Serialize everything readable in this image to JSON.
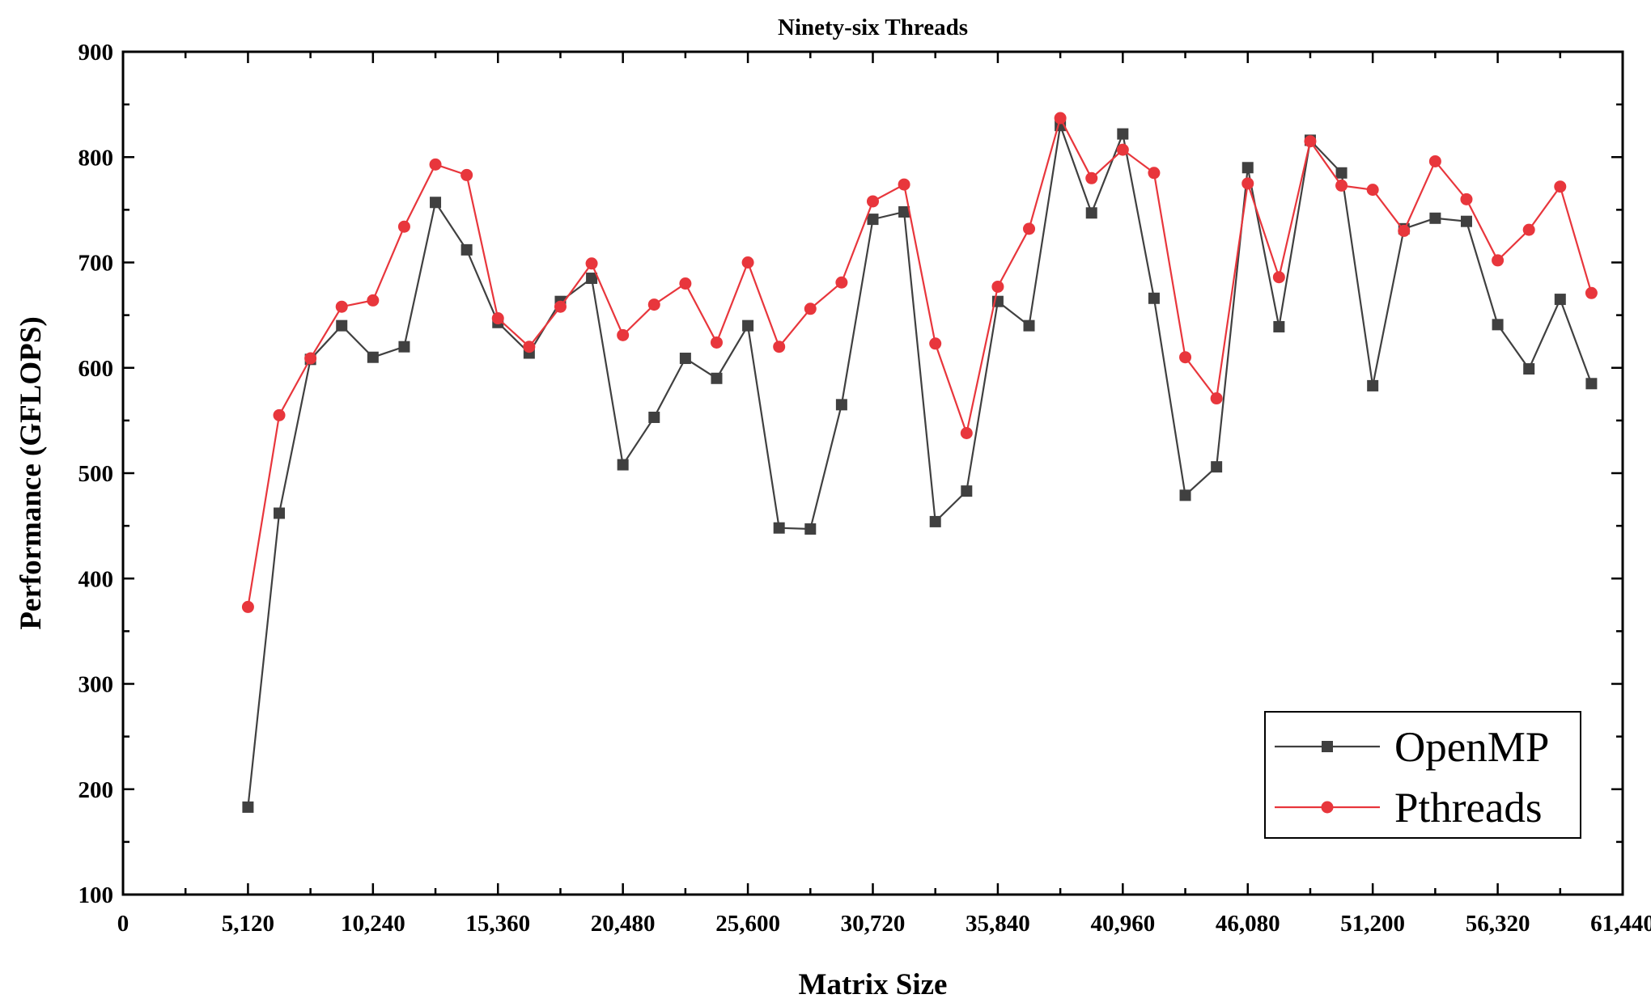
{
  "chart_data": {
    "type": "line",
    "title": "Ninety-six Threads",
    "xlabel": "Matrix Size",
    "ylabel": "Performance (GFLOPS)",
    "xlim": [
      0,
      61440
    ],
    "ylim": [
      100,
      900
    ],
    "xticks": [
      0,
      5120,
      10240,
      15360,
      20480,
      25600,
      30720,
      35840,
      40960,
      46080,
      51200,
      56320,
      61440
    ],
    "xtick_labels": [
      "0",
      "5,120",
      "10,240",
      "15,360",
      "20,480",
      "25,600",
      "30,720",
      "35,840",
      "40,960",
      "46,080",
      "51,200",
      "56,320",
      "61,440"
    ],
    "yticks": [
      100,
      200,
      300,
      400,
      500,
      600,
      700,
      800,
      900
    ],
    "ytick_labels": [
      "100",
      "200",
      "300",
      "400",
      "500",
      "600",
      "700",
      "800",
      "900"
    ],
    "legend_position": "bottom-right",
    "x": [
      5120,
      6400,
      7680,
      8960,
      10240,
      11520,
      12800,
      14080,
      15360,
      16640,
      17920,
      19200,
      20480,
      21760,
      23040,
      24320,
      25600,
      26880,
      28160,
      29440,
      30720,
      32000,
      33280,
      34560,
      35840,
      37120,
      38400,
      39680,
      40960,
      42240,
      43520,
      44800,
      46080,
      47360,
      48640,
      49920,
      51200,
      52480,
      53760,
      55040,
      56320,
      57600,
      58880,
      60160
    ],
    "series": [
      {
        "name": "OpenMP",
        "color": "#404040",
        "marker": "square",
        "values": [
          183,
          462,
          608,
          640,
          610,
          620,
          757,
          712,
          643,
          614,
          663,
          685,
          508,
          553,
          609,
          590,
          640,
          448,
          447,
          565,
          741,
          748,
          454,
          483,
          663,
          640,
          830,
          747,
          822,
          666,
          479,
          506,
          790,
          639,
          816,
          785,
          583,
          732,
          742,
          739,
          641,
          599,
          665,
          585
        ]
      },
      {
        "name": "Pthreads",
        "color": "#e8363c",
        "marker": "circle",
        "values": [
          373,
          555,
          609,
          658,
          664,
          734,
          793,
          783,
          647,
          620,
          658,
          699,
          631,
          660,
          680,
          624,
          700,
          620,
          656,
          681,
          758,
          774,
          623,
          538,
          677,
          732,
          837,
          780,
          807,
          785,
          610,
          571,
          775,
          686,
          815,
          773,
          769,
          730,
          796,
          760,
          702,
          731,
          772,
          671
        ]
      }
    ]
  }
}
